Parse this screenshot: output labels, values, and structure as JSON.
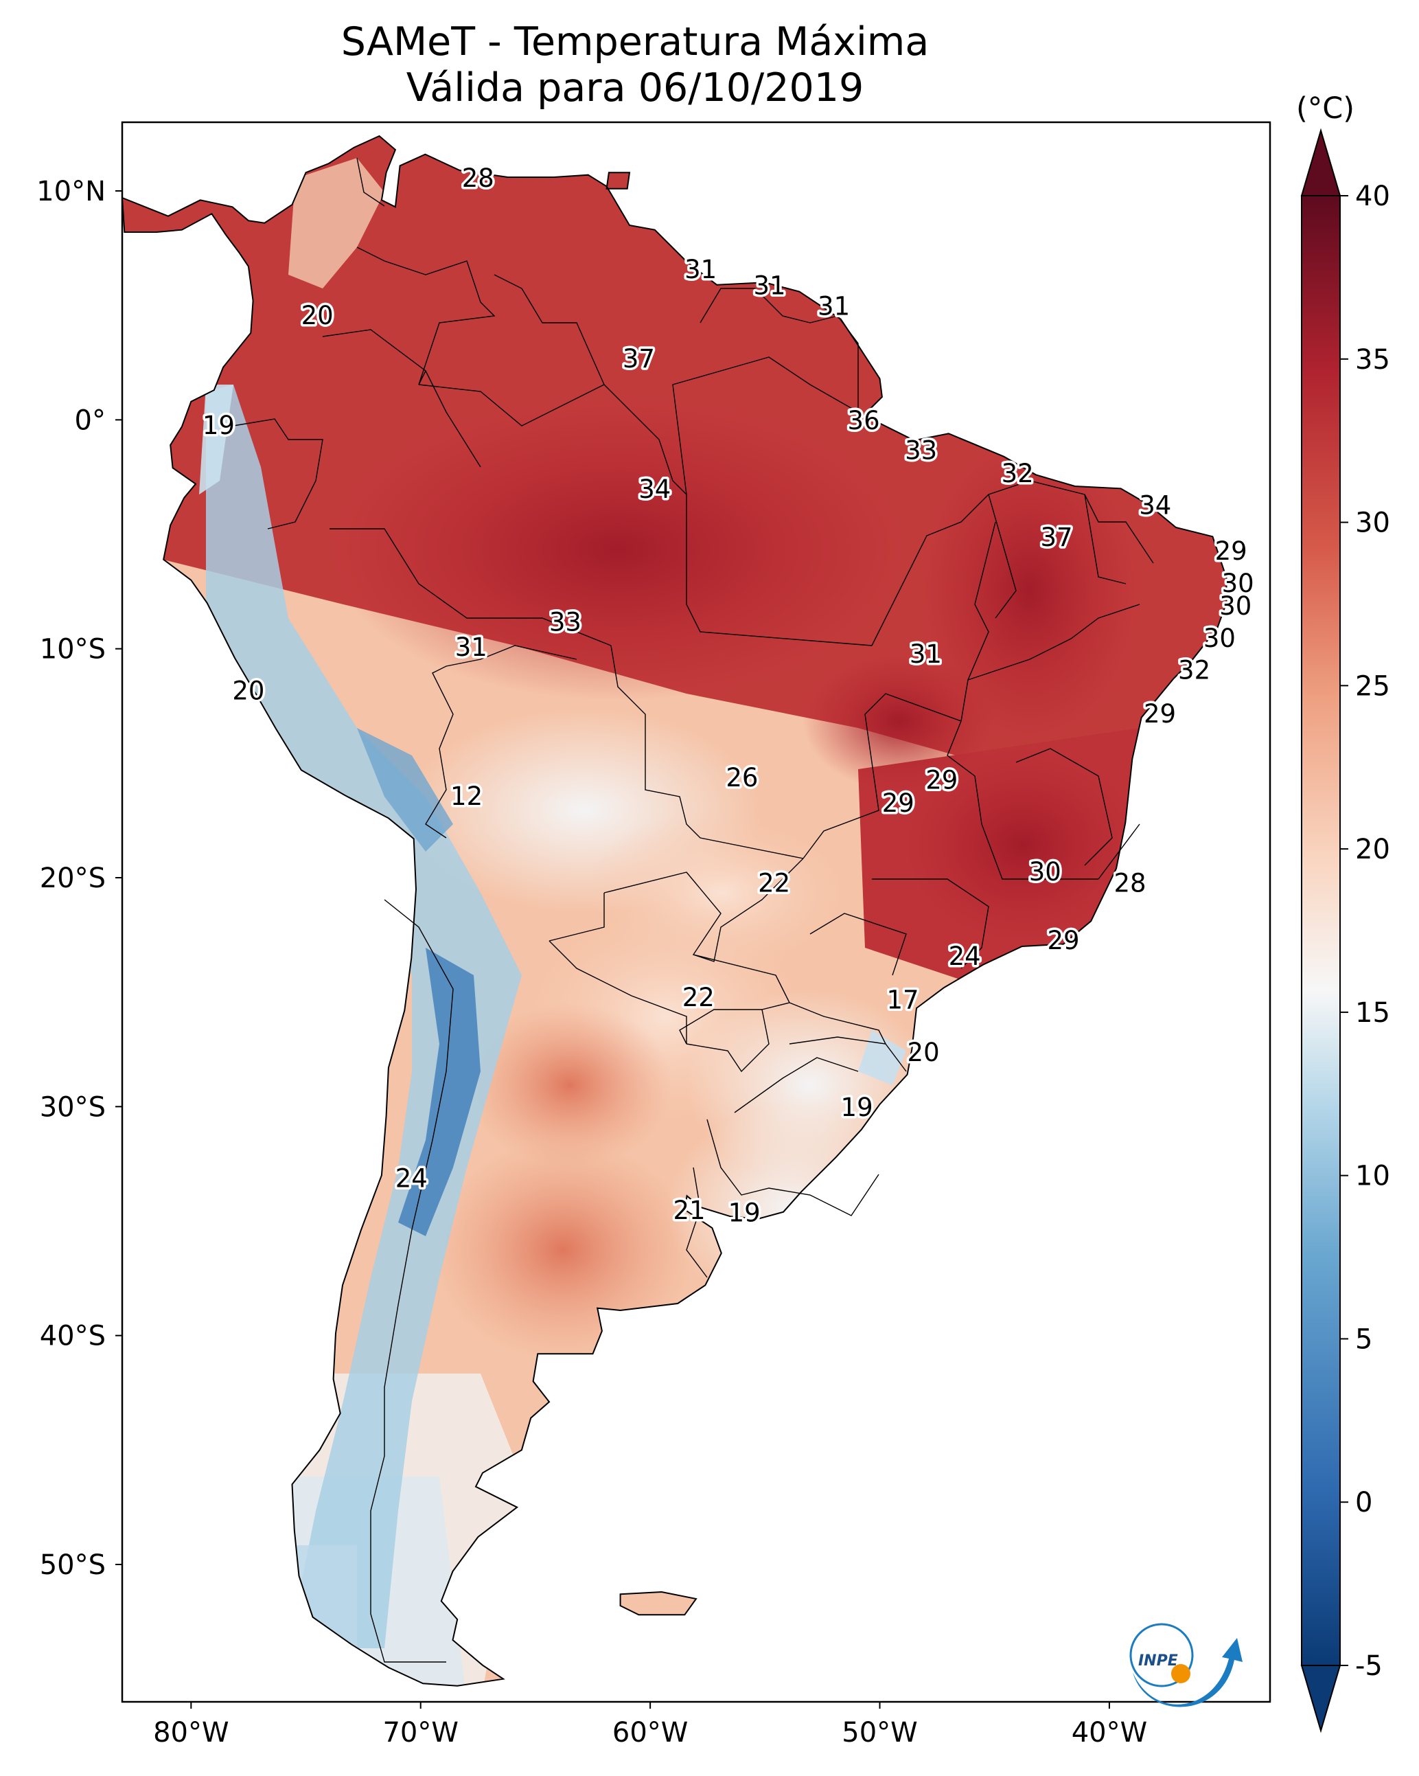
{
  "title": {
    "line1": "SAMeT - Temperatura Máxima",
    "line2": "Válida para 06/10/2019"
  },
  "map": {
    "lon_ticks": [
      "80°W",
      "70°W",
      "60°W",
      "50°W",
      "40°W"
    ],
    "lat_ticks": [
      "10°N",
      "0°",
      "10°S",
      "20°S",
      "30°S",
      "40°S",
      "50°S"
    ],
    "extent": {
      "lon": [
        -83,
        -33
      ],
      "lat": [
        -56,
        13
      ]
    },
    "labels": [
      {
        "v": "28",
        "lon": -67.5,
        "lat": 10.5
      },
      {
        "v": "31",
        "lon": -57.8,
        "lat": 6.5
      },
      {
        "v": "31",
        "lon": -54.8,
        "lat": 5.8
      },
      {
        "v": "31",
        "lon": -52.0,
        "lat": 4.9
      },
      {
        "v": "20",
        "lon": -74.5,
        "lat": 4.5
      },
      {
        "v": "37",
        "lon": -60.5,
        "lat": 2.6
      },
      {
        "v": "36",
        "lon": -50.7,
        "lat": -0.1
      },
      {
        "v": "19",
        "lon": -78.8,
        "lat": -0.3
      },
      {
        "v": "33",
        "lon": -48.2,
        "lat": -1.4
      },
      {
        "v": "32",
        "lon": -44.0,
        "lat": -2.4
      },
      {
        "v": "34",
        "lon": -59.8,
        "lat": -3.1
      },
      {
        "v": "34",
        "lon": -38.0,
        "lat": -3.8
      },
      {
        "v": "37",
        "lon": -42.3,
        "lat": -5.2
      },
      {
        "v": "29",
        "lon": -34.7,
        "lat": -5.8
      },
      {
        "v": "30",
        "lon": -34.4,
        "lat": -7.2
      },
      {
        "v": "30",
        "lon": -34.5,
        "lat": -8.2
      },
      {
        "v": "33",
        "lon": -63.7,
        "lat": -8.9
      },
      {
        "v": "30",
        "lon": -35.2,
        "lat": -9.6
      },
      {
        "v": "31",
        "lon": -67.8,
        "lat": -10.0
      },
      {
        "v": "31",
        "lon": -48.0,
        "lat": -10.3
      },
      {
        "v": "32",
        "lon": -36.3,
        "lat": -11.0
      },
      {
        "v": "20",
        "lon": -77.5,
        "lat": -11.9
      },
      {
        "v": "29",
        "lon": -37.8,
        "lat": -12.9
      },
      {
        "v": "26",
        "lon": -56.0,
        "lat": -15.7
      },
      {
        "v": "29",
        "lon": -47.3,
        "lat": -15.8
      },
      {
        "v": "12",
        "lon": -68.0,
        "lat": -16.5
      },
      {
        "v": "29",
        "lon": -49.2,
        "lat": -16.8
      },
      {
        "v": "30",
        "lon": -42.8,
        "lat": -19.8
      },
      {
        "v": "22",
        "lon": -54.6,
        "lat": -20.3
      },
      {
        "v": "28",
        "lon": -39.1,
        "lat": -20.3
      },
      {
        "v": "29",
        "lon": -42.0,
        "lat": -22.8
      },
      {
        "v": "24",
        "lon": -46.3,
        "lat": -23.5
      },
      {
        "v": "22",
        "lon": -57.9,
        "lat": -25.3
      },
      {
        "v": "17",
        "lon": -49.0,
        "lat": -25.4
      },
      {
        "v": "20",
        "lon": -48.1,
        "lat": -27.7
      },
      {
        "v": "19",
        "lon": -51.0,
        "lat": -30.1
      },
      {
        "v": "24",
        "lon": -70.4,
        "lat": -33.2
      },
      {
        "v": "21",
        "lon": -58.3,
        "lat": -34.6
      },
      {
        "v": "19",
        "lon": -55.9,
        "lat": -34.7
      }
    ]
  },
  "colorbar": {
    "unit": "(°C)",
    "min": -5,
    "max": 40,
    "ticks": [
      "40",
      "35",
      "30",
      "25",
      "20",
      "15",
      "10",
      "5",
      "0",
      "-5"
    ],
    "colors": {
      "cold_extreme": "#0b3a75",
      "blue": "#2f6ab0",
      "light_blue": "#9ccae0",
      "white": "#f7f7f7",
      "peach": "#f7c8ad",
      "salmon": "#e58468",
      "red": "#c43c3c",
      "dark_red": "#a4182b",
      "hot_extreme": "#5e0a1f"
    }
  },
  "logo": {
    "text": "INPE",
    "colors": {
      "arc": "#1b7cc2",
      "dot": "#f39200"
    }
  }
}
